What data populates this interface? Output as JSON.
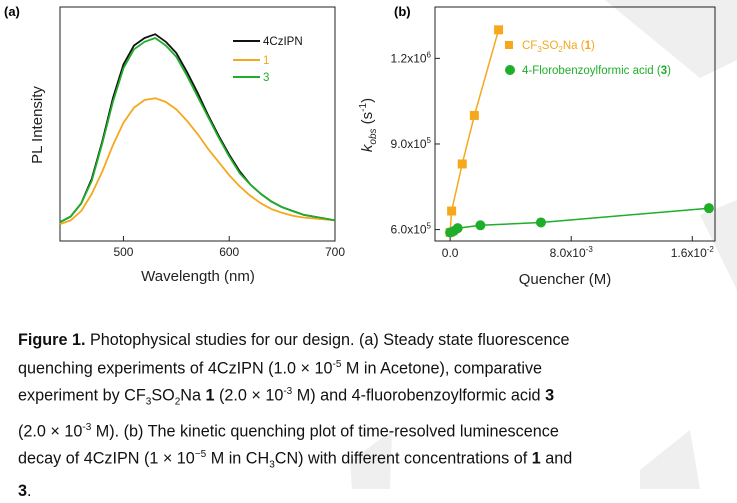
{
  "figure": {
    "panel_a_label": "(a)",
    "panel_b_label": "(b)"
  },
  "colors": {
    "black": "#111111",
    "orange": "#F5A81C",
    "green": "#1FAE2A",
    "watermark": "#ECECEC"
  },
  "chart_data": [
    {
      "type": "line",
      "title": "",
      "xlabel": "Wavelength (nm)",
      "ylabel": "PL Intensity",
      "xlim": [
        440,
        700
      ],
      "x_ticks": [
        500,
        600,
        700
      ],
      "y_ticks": [],
      "legend_position": "top-right",
      "series": [
        {
          "name": "4CzIPN",
          "color": "#111111",
          "x": [
            440,
            450,
            460,
            470,
            480,
            490,
            500,
            510,
            520,
            530,
            540,
            550,
            560,
            570,
            580,
            590,
            600,
            610,
            620,
            630,
            640,
            650,
            660,
            670,
            680,
            690,
            700
          ],
          "y": [
            0.02,
            0.05,
            0.12,
            0.25,
            0.45,
            0.68,
            0.86,
            0.96,
            1.0,
            1.02,
            0.98,
            0.92,
            0.82,
            0.71,
            0.59,
            0.48,
            0.38,
            0.29,
            0.22,
            0.17,
            0.13,
            0.1,
            0.08,
            0.06,
            0.05,
            0.04,
            0.03
          ]
        },
        {
          "name": "1",
          "color": "#F5A81C",
          "x": [
            440,
            450,
            460,
            470,
            480,
            490,
            500,
            510,
            520,
            530,
            540,
            550,
            560,
            570,
            580,
            590,
            600,
            610,
            620,
            630,
            640,
            650,
            660,
            670,
            680,
            690,
            700
          ],
          "y": [
            0.01,
            0.03,
            0.08,
            0.17,
            0.29,
            0.43,
            0.55,
            0.63,
            0.67,
            0.68,
            0.66,
            0.62,
            0.56,
            0.49,
            0.41,
            0.34,
            0.27,
            0.21,
            0.16,
            0.12,
            0.09,
            0.07,
            0.055,
            0.045,
            0.04,
            0.035,
            0.03
          ]
        },
        {
          "name": "3",
          "color": "#1FAE2A",
          "x": [
            440,
            450,
            460,
            470,
            480,
            490,
            500,
            510,
            520,
            530,
            540,
            550,
            560,
            570,
            580,
            590,
            600,
            610,
            620,
            630,
            640,
            650,
            660,
            670,
            680,
            690,
            700
          ],
          "y": [
            0.02,
            0.05,
            0.12,
            0.24,
            0.44,
            0.66,
            0.84,
            0.94,
            0.98,
            1.0,
            0.96,
            0.9,
            0.8,
            0.69,
            0.58,
            0.47,
            0.37,
            0.28,
            0.22,
            0.17,
            0.13,
            0.1,
            0.08,
            0.06,
            0.05,
            0.04,
            0.03
          ]
        }
      ]
    },
    {
      "type": "scatter",
      "title": "",
      "xlabel": "Quencher (M)",
      "ylabel_main": "k",
      "ylabel_sub": "obs",
      "ylabel_unit": "(s",
      "ylabel_exp": "-1",
      "ylabel_close": ")",
      "xlim": [
        -0.001,
        0.0175
      ],
      "ylim": [
        560000,
        1380000
      ],
      "x_ticks": [
        {
          "value": 0,
          "mant": "0.0",
          "exp": ""
        },
        {
          "value": 0.008,
          "mant": "8.0x10",
          "exp": "-3"
        },
        {
          "value": 0.016,
          "mant": "1.6x10",
          "exp": "-2"
        }
      ],
      "y_ticks": [
        {
          "value": 600000,
          "mant": "6.0x10",
          "exp": "5"
        },
        {
          "value": 900000,
          "mant": "9.0x10",
          "exp": "5"
        },
        {
          "value": 1200000,
          "mant": "1.2x10",
          "exp": "6"
        }
      ],
      "legend_position": "top-right",
      "series": [
        {
          "name": "CF3SO2Na (1)",
          "color": "#F5A81C",
          "marker": "square",
          "line": true,
          "legend_parts": [
            "CF",
            "3",
            "SO",
            "2",
            "Na (",
            "1",
            ")"
          ],
          "x": [
            0.0,
            0.0001,
            0.0008,
            0.0016,
            0.0032
          ],
          "y": [
            590000,
            665000,
            830000,
            1000000,
            1300000
          ]
        },
        {
          "name": "4-Florobenzoylformic acid (3)",
          "color": "#1FAE2A",
          "marker": "circle",
          "line": true,
          "legend_parts": [
            "4-Florobenzoylformic acid (",
            "3",
            ")"
          ],
          "x": [
            0.0,
            0.00025,
            0.0005,
            0.002,
            0.006,
            0.0171
          ],
          "y": [
            590000,
            595000,
            605000,
            615000,
            625000,
            675000
          ]
        }
      ]
    }
  ],
  "caption": {
    "label": "Figure 1.",
    "l1_rest": " Photophysical studies for our design. (a) Steady state fluorescence",
    "l2_a": "quenching experiments of 4CzIPN (1.0 × 10",
    "l2_sup": "-5",
    "l2_b": " M in Acetone), comparative",
    "l3_a": "experiment by CF",
    "l3_sub1": "3",
    "l3_b": "SO",
    "l3_sub2": "2",
    "l3_c": "Na ",
    "l3_bold1": "1",
    "l3_d": " (2.0 × 10",
    "l3_sup": "-3",
    "l3_e": " M) and 4-fluorobenzoylformic acid ",
    "l3_bold2": "3",
    "l4_a": "(2.0 × 10",
    "l4_sup": "-3",
    "l4_b": " M). (b) The kinetic quenching plot of time-resolved luminescence",
    "l5_a": "decay of 4CzIPN (1 × 10",
    "l5_sup": "−5",
    "l5_b": " M in CH",
    "l5_sub": "3",
    "l5_c": "CN) with different concentrations of ",
    "l5_bold": "1",
    "l5_d": " and",
    "l6_bold": "3",
    "l6_end": "."
  }
}
